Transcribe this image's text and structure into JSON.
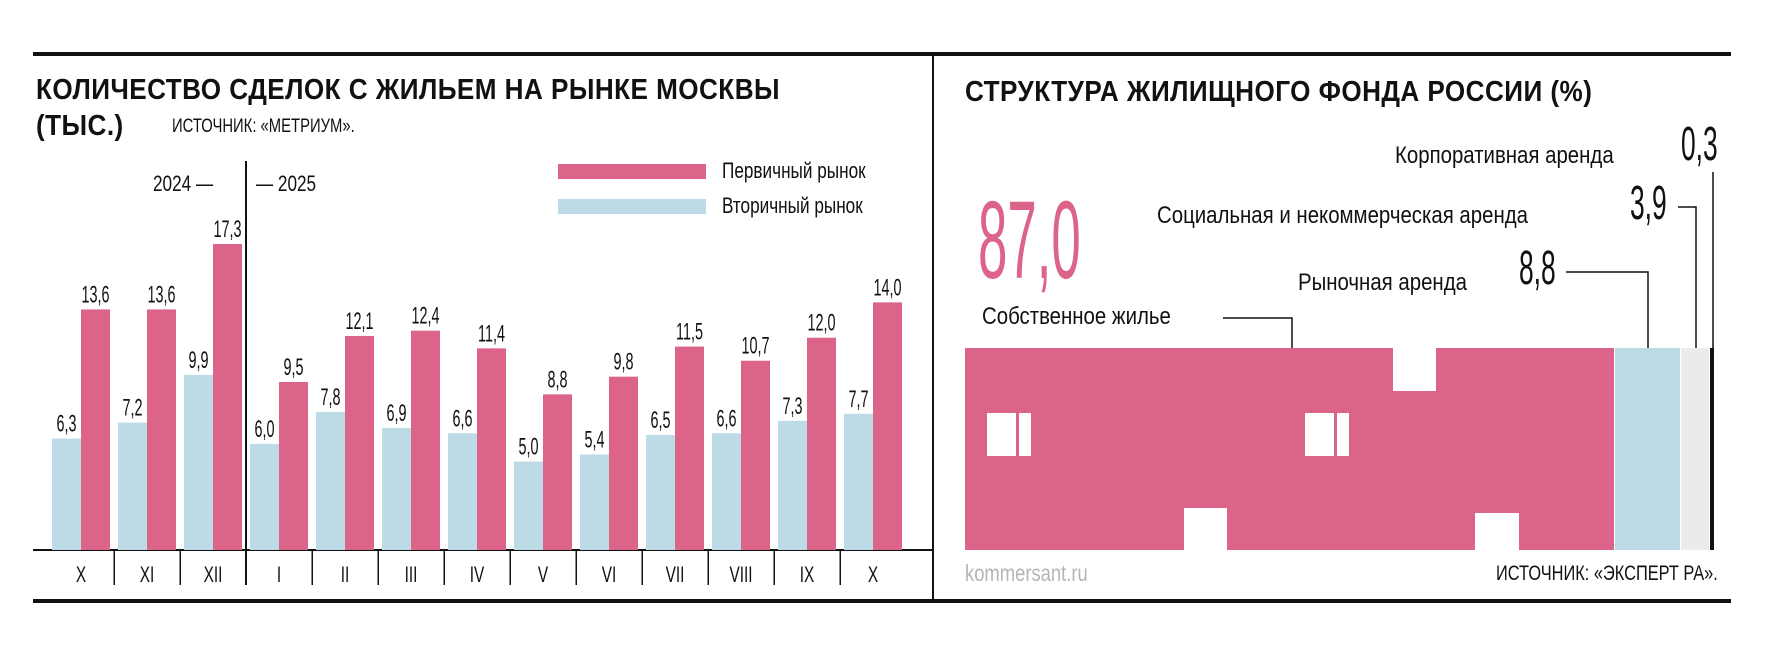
{
  "colors": {
    "primary": "#dc6489",
    "secondary": "#bcdbe7",
    "other": "#ebebeb",
    "corp": "#111111"
  },
  "chart_data": [
    {
      "type": "bar",
      "title": "КОЛИЧЕСТВО СДЕЛОК С ЖИЛЬЕМ НА РЫНКЕ МОСКВЫ",
      "title_unit": "(ТЫС.)",
      "source": "ИСТОЧНИК: «МЕТРИУМ».",
      "year_left": "2024 —",
      "year_right": "— 2025",
      "categories": [
        "X",
        "XI",
        "XII",
        "I",
        "II",
        "III",
        "IV",
        "V",
        "VI",
        "VII",
        "VIII",
        "IX",
        "X"
      ],
      "series": [
        {
          "name": "Вторичный рынок",
          "values": [
            6.3,
            7.2,
            9.9,
            6.0,
            7.8,
            6.9,
            6.6,
            5.0,
            5.4,
            6.5,
            6.6,
            7.3,
            7.7
          ]
        },
        {
          "name": "Первичный рынок",
          "values": [
            13.6,
            13.6,
            17.3,
            9.5,
            12.1,
            12.4,
            11.4,
            8.8,
            9.8,
            11.5,
            10.7,
            12.0,
            14.0
          ]
        }
      ],
      "legend": [
        "Первичный рынок",
        "Вторичный рынок"
      ],
      "legend_placement": "top-right",
      "ylim": [
        0,
        17.3
      ]
    },
    {
      "type": "bar",
      "subtype": "stacked-100",
      "title": "СТРУКТУРА ЖИЛИЩНОГО ФОНДА РОССИИ (%)",
      "source": "ИСТОЧНИК: «ЭКСПЕРТ РА».",
      "segments": [
        {
          "name": "Собственное жилье",
          "value": 87.0,
          "label": "87,0"
        },
        {
          "name": "Рыночная аренда",
          "value": 8.8,
          "label": "8,8"
        },
        {
          "name": "Социальная и некоммерческая аренда",
          "value": 3.9,
          "label": "3,9"
        },
        {
          "name": "Корпоративная аренда",
          "value": 0.3,
          "label": "0,3"
        }
      ]
    }
  ],
  "footer": {
    "site": "kommersant.ru"
  }
}
